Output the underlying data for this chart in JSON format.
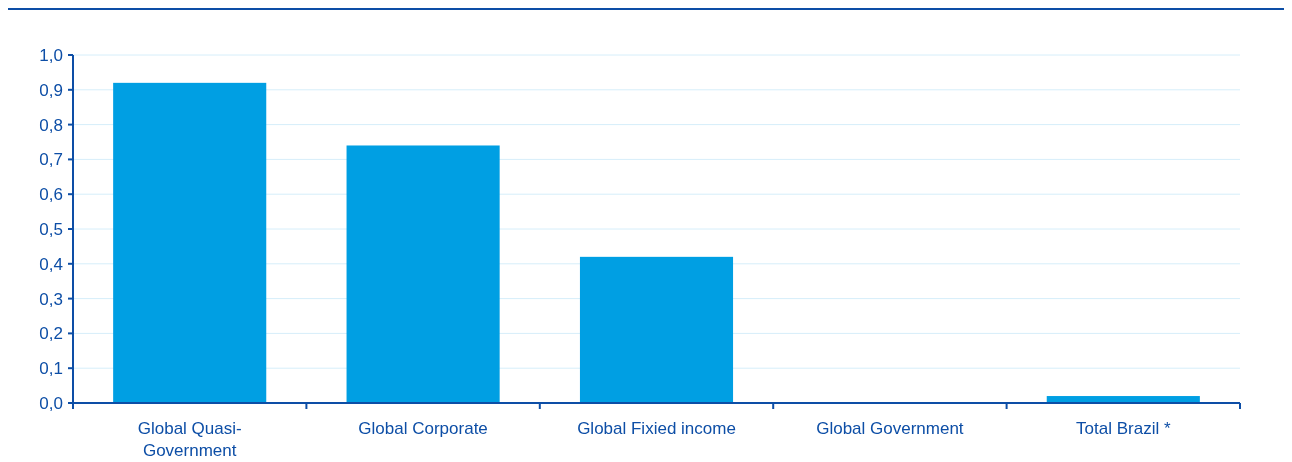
{
  "chart_data": {
    "type": "bar",
    "categories": [
      "Global Quasi-Government",
      "Global Corporate",
      "Global Fixied income",
      "Global Government",
      "Total Brazil *"
    ],
    "values": [
      0.92,
      0.74,
      0.42,
      0,
      0.02
    ],
    "color": "#009fe3",
    "ylim": [
      0,
      1
    ],
    "yticks": [
      {
        "value": 0,
        "label": "0,0"
      },
      {
        "value": 0.1,
        "label": "0,1"
      },
      {
        "value": 0.2,
        "label": "0,2"
      },
      {
        "value": 0.3,
        "label": "0,3"
      },
      {
        "value": 0.4,
        "label": "0,4"
      },
      {
        "value": 0.5,
        "label": "0,5"
      },
      {
        "value": 0.6,
        "label": "0,6"
      },
      {
        "value": 0.7,
        "label": "0,7"
      },
      {
        "value": 0.8,
        "label": "0,8"
      },
      {
        "value": 0.9,
        "label": "0,9"
      },
      {
        "value": 1,
        "label": "1,0"
      }
    ],
    "grid": "y"
  }
}
